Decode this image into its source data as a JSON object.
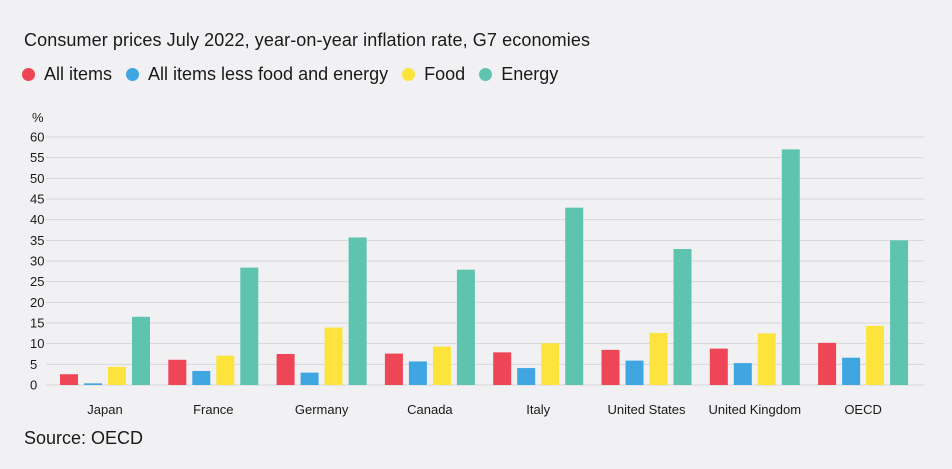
{
  "chart_data": {
    "type": "bar",
    "title": "Consumer prices July 2022, year-on-year inflation rate, G7 economies",
    "ylabel": "%",
    "ylim": [
      0,
      60
    ],
    "yticks": [
      0,
      5,
      10,
      15,
      20,
      25,
      30,
      35,
      40,
      45,
      50,
      55,
      60
    ],
    "grid": true,
    "legend_position": "top-left",
    "categories": [
      "Japan",
      "France",
      "Germany",
      "Canada",
      "Italy",
      "United States",
      "United Kingdom",
      "OECD"
    ],
    "series": [
      {
        "name": "All items",
        "color": "#ee4557",
        "values": [
          2.6,
          6.1,
          7.5,
          7.6,
          7.9,
          8.5,
          8.8,
          10.2
        ]
      },
      {
        "name": "All items less food and energy",
        "color": "#3fa6e2",
        "values": [
          0.4,
          3.4,
          3.0,
          5.7,
          4.1,
          5.9,
          5.3,
          6.6
        ]
      },
      {
        "name": "Food",
        "color": "#fde43c",
        "values": [
          4.4,
          7.1,
          13.9,
          9.3,
          10.1,
          12.6,
          12.5,
          14.3
        ]
      },
      {
        "name": "Energy",
        "color": "#5ec4b0",
        "values": [
          16.5,
          28.4,
          35.7,
          27.9,
          42.9,
          32.9,
          57.0,
          35.0
        ]
      }
    ]
  },
  "source": "Source: OECD"
}
